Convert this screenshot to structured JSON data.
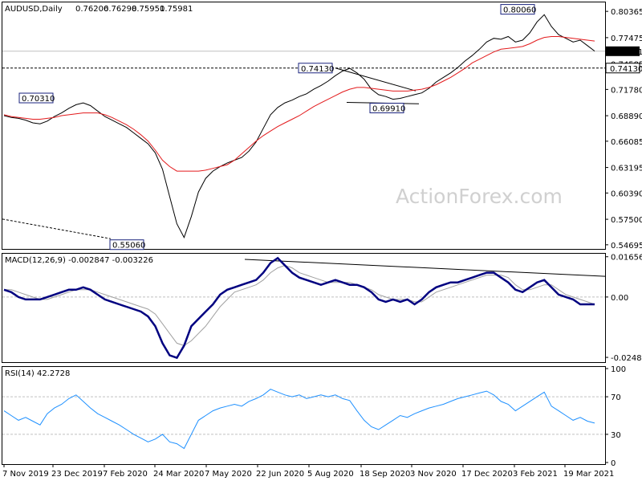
{
  "chart_data": {
    "type": "line",
    "symbol": "AUDUSD,Daily",
    "ohlc": [
      "0.76206",
      "0.76298",
      "0.75951",
      "0.75981"
    ],
    "watermark": "ActionForex.com",
    "x_ticks": [
      "7 Nov 2019",
      "23 Dec 2019",
      "7 Feb 2020",
      "24 Mar 2020",
      "7 May 2020",
      "22 Jun 2020",
      "5 Aug 2020",
      "18 Sep 2020",
      "3 Nov 2020",
      "17 Dec 2020",
      "3 Feb 2021",
      "19 Mar 2021"
    ],
    "colors": {
      "price": "#000000",
      "sma": "#e31a1c",
      "macd": "#000080",
      "signal": "#a0a0a0",
      "rsi": "#1e90ff",
      "level": "#000000",
      "annotation_border": "#1a237e"
    },
    "price_panel": {
      "ylim": [
        0.5424,
        0.8135
      ],
      "y_ticks": [
        "0.80365",
        "0.77475",
        "0.74585",
        "0.71780",
        "0.68890",
        "0.66085",
        "0.63195",
        "0.60390",
        "0.57500",
        "0.54695"
      ],
      "current_price": "0.75981",
      "level_label": "0.74130",
      "annotations": [
        "0.80060",
        "0.74130",
        "0.70310",
        "0.69910",
        "0.55060"
      ],
      "series_close": [
        0.689,
        0.687,
        0.686,
        0.684,
        0.681,
        0.68,
        0.683,
        0.688,
        0.692,
        0.697,
        0.701,
        0.703,
        0.7,
        0.694,
        0.688,
        0.684,
        0.68,
        0.676,
        0.67,
        0.664,
        0.658,
        0.648,
        0.63,
        0.6,
        0.57,
        0.555,
        0.578,
        0.605,
        0.62,
        0.628,
        0.633,
        0.637,
        0.64,
        0.643,
        0.65,
        0.66,
        0.675,
        0.69,
        0.698,
        0.703,
        0.706,
        0.71,
        0.713,
        0.718,
        0.722,
        0.727,
        0.733,
        0.738,
        0.741,
        0.736,
        0.729,
        0.718,
        0.712,
        0.71,
        0.707,
        0.708,
        0.71,
        0.712,
        0.714,
        0.719,
        0.726,
        0.731,
        0.736,
        0.742,
        0.749,
        0.755,
        0.762,
        0.77,
        0.774,
        0.773,
        0.776,
        0.77,
        0.772,
        0.78,
        0.792,
        0.8,
        0.787,
        0.778,
        0.774,
        0.77,
        0.772,
        0.766,
        0.76
      ],
      "series_sma": [
        0.69,
        0.688,
        0.687,
        0.686,
        0.685,
        0.685,
        0.686,
        0.687,
        0.689,
        0.69,
        0.691,
        0.692,
        0.692,
        0.692,
        0.69,
        0.687,
        0.683,
        0.679,
        0.674,
        0.668,
        0.661,
        0.651,
        0.64,
        0.633,
        0.628,
        0.628,
        0.628,
        0.628,
        0.629,
        0.631,
        0.633,
        0.635,
        0.64,
        0.647,
        0.654,
        0.661,
        0.667,
        0.672,
        0.677,
        0.681,
        0.685,
        0.689,
        0.694,
        0.699,
        0.703,
        0.707,
        0.711,
        0.715,
        0.718,
        0.72,
        0.72,
        0.719,
        0.718,
        0.717,
        0.716,
        0.716,
        0.716,
        0.717,
        0.718,
        0.72,
        0.723,
        0.727,
        0.731,
        0.736,
        0.741,
        0.747,
        0.751,
        0.755,
        0.759,
        0.762,
        0.763,
        0.764,
        0.765,
        0.768,
        0.772,
        0.775,
        0.776,
        0.776,
        0.775,
        0.774,
        0.773,
        0.772,
        0.771
      ]
    },
    "macd_panel": {
      "label": "MACD(12,26,9) -0.002847 -0.003226",
      "ylim": [
        -0.0268,
        0.0178
      ],
      "y_ticks": [
        "0.016567",
        "0.00",
        "-0.02484"
      ],
      "series_macd": [
        0.003,
        0.002,
        0.0,
        -0.001,
        -0.001,
        -0.001,
        0.0,
        0.001,
        0.002,
        0.003,
        0.003,
        0.004,
        0.003,
        0.001,
        -0.001,
        -0.002,
        -0.003,
        -0.004,
        -0.005,
        -0.006,
        -0.008,
        -0.012,
        -0.019,
        -0.024,
        -0.025,
        -0.02,
        -0.012,
        -0.009,
        -0.006,
        -0.003,
        0.001,
        0.003,
        0.004,
        0.005,
        0.006,
        0.007,
        0.01,
        0.014,
        0.016,
        0.013,
        0.01,
        0.008,
        0.007,
        0.006,
        0.005,
        0.006,
        0.007,
        0.006,
        0.005,
        0.005,
        0.004,
        0.002,
        -0.001,
        -0.002,
        -0.001,
        -0.002,
        -0.001,
        -0.003,
        -0.001,
        0.002,
        0.004,
        0.005,
        0.006,
        0.006,
        0.007,
        0.008,
        0.009,
        0.01,
        0.01,
        0.008,
        0.006,
        0.003,
        0.002,
        0.004,
        0.006,
        0.007,
        0.004,
        0.001,
        0.0,
        -0.001,
        -0.003,
        -0.003,
        -0.003
      ],
      "series_signal": [
        0.003,
        0.003,
        0.002,
        0.001,
        0.0,
        -0.001,
        -0.001,
        0.0,
        0.001,
        0.002,
        0.003,
        0.003,
        0.003,
        0.002,
        0.001,
        0.0,
        -0.001,
        -0.002,
        -0.003,
        -0.004,
        -0.005,
        -0.007,
        -0.011,
        -0.015,
        -0.019,
        -0.02,
        -0.018,
        -0.015,
        -0.012,
        -0.008,
        -0.004,
        -0.001,
        0.002,
        0.003,
        0.004,
        0.005,
        0.007,
        0.01,
        0.012,
        0.013,
        0.012,
        0.01,
        0.009,
        0.008,
        0.007,
        0.006,
        0.006,
        0.006,
        0.006,
        0.005,
        0.004,
        0.003,
        0.001,
        0.0,
        -0.001,
        -0.001,
        -0.001,
        -0.002,
        -0.002,
        0.0,
        0.002,
        0.003,
        0.004,
        0.005,
        0.006,
        0.007,
        0.008,
        0.009,
        0.009,
        0.009,
        0.008,
        0.005,
        0.003,
        0.003,
        0.004,
        0.005,
        0.005,
        0.003,
        0.001,
        0.0,
        -0.001,
        -0.002,
        -0.003
      ]
    },
    "rsi_panel": {
      "label": "RSI(14) 42.2728",
      "ylim": [
        0,
        100
      ],
      "y_ticks": [
        "100",
        "70",
        "30",
        "0"
      ],
      "series_rsi": [
        55,
        50,
        45,
        48,
        44,
        40,
        52,
        58,
        62,
        68,
        72,
        65,
        58,
        52,
        48,
        44,
        40,
        35,
        30,
        26,
        22,
        25,
        30,
        22,
        20,
        15,
        30,
        45,
        50,
        55,
        58,
        60,
        62,
        60,
        65,
        68,
        72,
        78,
        75,
        72,
        70,
        72,
        68,
        70,
        72,
        70,
        72,
        68,
        66,
        55,
        45,
        38,
        35,
        40,
        45,
        50,
        48,
        52,
        55,
        58,
        60,
        62,
        65,
        68,
        70,
        72,
        74,
        76,
        72,
        65,
        62,
        55,
        60,
        65,
        70,
        75,
        60,
        55,
        50,
        45,
        48,
        44,
        42
      ]
    }
  }
}
